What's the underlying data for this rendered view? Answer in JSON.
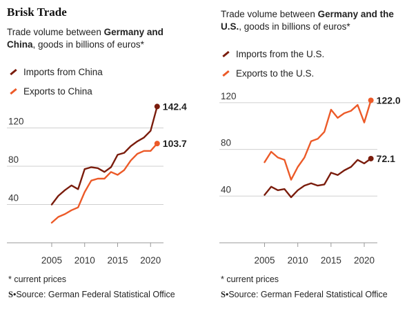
{
  "figure_title": "Brisk Trade",
  "charts_meta": [
    {
      "subtitle_line1_pre": "Trade volume between ",
      "subtitle_line1_bold": "Germany and",
      "subtitle_line2_bold": "China",
      "subtitle_line2_post": ", goods in billions of euros*",
      "note": "* current prices",
      "source_logo": "S",
      "source_text": "Source: German Federal Statistical Office"
    },
    {
      "subtitle_line1_pre": "Trade volume between ",
      "subtitle_line1_bold": "Germany and the",
      "subtitle_line2_bold": "U.S.",
      "subtitle_line2_post": ", goods in billions of euros*",
      "note": "* current prices",
      "source_logo": "S",
      "source_text": "Source: German Federal Statistical Office"
    }
  ],
  "colors": {
    "dark": "#7a1c0c",
    "light": "#ec5a28",
    "grid": "#cfcfcf",
    "axis": "#999999"
  },
  "chart_data": [
    {
      "type": "line",
      "ylim": [
        0,
        160
      ],
      "yticks": [
        40,
        80,
        120
      ],
      "xlim": [
        1998.2,
        2022.8
      ],
      "xticks": [
        2005,
        2010,
        2015,
        2020
      ],
      "grid": true,
      "legend": "top-left",
      "series": [
        {
          "name": "Imports from China",
          "color": "#7a1c0c",
          "x": [
            2005,
            2006,
            2007,
            2008,
            2009,
            2010,
            2011,
            2012,
            2013,
            2014,
            2015,
            2016,
            2017,
            2018,
            2019,
            2020,
            2021
          ],
          "values": [
            40,
            49,
            55,
            60,
            56,
            77,
            79,
            78,
            74,
            79,
            92,
            94,
            101,
            106,
            110,
            117,
            142.4
          ],
          "end_label": "142.4"
        },
        {
          "name": "Exports to China",
          "color": "#ec5a28",
          "x": [
            2005,
            2006,
            2007,
            2008,
            2009,
            2010,
            2011,
            2012,
            2013,
            2014,
            2015,
            2016,
            2017,
            2018,
            2019,
            2020,
            2021
          ],
          "values": [
            21,
            27,
            30,
            34,
            37,
            53,
            65,
            67,
            67,
            74,
            71,
            76,
            86,
            93,
            96,
            96,
            103.7
          ],
          "end_label": "103.7"
        }
      ]
    },
    {
      "type": "line",
      "ylim": [
        0,
        140
      ],
      "yticks": [
        40,
        80,
        120
      ],
      "xlim": [
        1998.2,
        2022.8
      ],
      "xticks": [
        2005,
        2010,
        2015,
        2020
      ],
      "grid": true,
      "legend": "top-left",
      "series": [
        {
          "name": "Imports from the U.S.",
          "color": "#7a1c0c",
          "x": [
            2005,
            2006,
            2007,
            2008,
            2009,
            2010,
            2011,
            2012,
            2013,
            2014,
            2015,
            2016,
            2017,
            2018,
            2019,
            2020,
            2021
          ],
          "values": [
            41,
            48,
            45,
            46,
            39,
            45,
            49,
            51,
            49,
            50,
            60,
            58,
            62,
            65,
            71,
            68,
            72.1
          ],
          "end_label": "72.1"
        },
        {
          "name": "Exports to the U.S.",
          "color": "#ec5a28",
          "x": [
            2005,
            2006,
            2007,
            2008,
            2009,
            2010,
            2011,
            2012,
            2013,
            2014,
            2015,
            2016,
            2017,
            2018,
            2019,
            2020,
            2021
          ],
          "values": [
            69,
            78,
            73,
            71,
            54,
            65,
            73,
            87,
            89,
            95,
            114,
            107,
            111,
            113,
            118,
            103,
            122.0
          ],
          "end_label": "122.0"
        }
      ]
    }
  ]
}
